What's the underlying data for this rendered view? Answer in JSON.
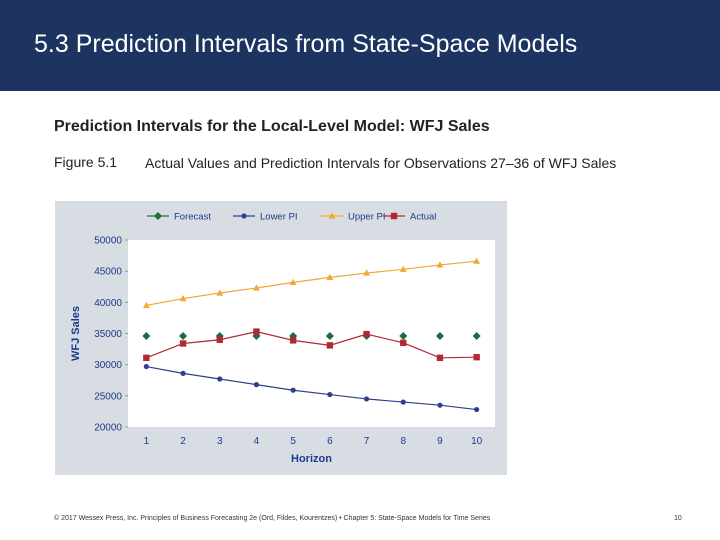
{
  "header": {
    "title": "5.3 Prediction Intervals from State-Space Models"
  },
  "subtitle": "Prediction Intervals for the Local-Level Model: WFJ Sales",
  "figure": {
    "label": "Figure 5.1",
    "caption": "Actual Values and Prediction Intervals for Observations 27–36 of WFJ Sales"
  },
  "chart_data": {
    "type": "line",
    "title": "",
    "xlabel": "Horizon",
    "ylabel": "WFJ Sales",
    "categories": [
      1,
      2,
      3,
      4,
      5,
      6,
      7,
      8,
      9,
      10
    ],
    "ylim": [
      20000,
      50000
    ],
    "yticks": [
      20000,
      25000,
      30000,
      35000,
      40000,
      45000,
      50000
    ],
    "legend_position": "top",
    "series": [
      {
        "name": "Forecast",
        "color": "#1e6b3c",
        "marker": "diamond",
        "line": false,
        "values": [
          34600,
          34600,
          34600,
          34600,
          34600,
          34600,
          34600,
          34600,
          34600,
          34600
        ]
      },
      {
        "name": "Lower PI",
        "color": "#2e3f8f",
        "marker": "circle",
        "line": true,
        "values": [
          29700,
          28600,
          27700,
          26800,
          25900,
          25200,
          24500,
          24000,
          23500,
          22800
        ]
      },
      {
        "name": "Upper PI",
        "color": "#f0a830",
        "marker": "triangle",
        "line": true,
        "values": [
          39500,
          40600,
          41500,
          42300,
          43200,
          44000,
          44700,
          45300,
          46000,
          46600
        ]
      },
      {
        "name": "Actual",
        "color": "#b02a35",
        "marker": "square",
        "line": true,
        "values": [
          31100,
          33400,
          34000,
          35300,
          33900,
          33100,
          34900,
          33500,
          31100,
          31200
        ]
      }
    ]
  },
  "footer": {
    "text": "© 2017 Wessex Press, Inc. Principles of Business Forecasting 2e (Ord, Fildes, Kourentzes) • Chapter 5: State-Space Models for Time Series",
    "page": "10"
  }
}
